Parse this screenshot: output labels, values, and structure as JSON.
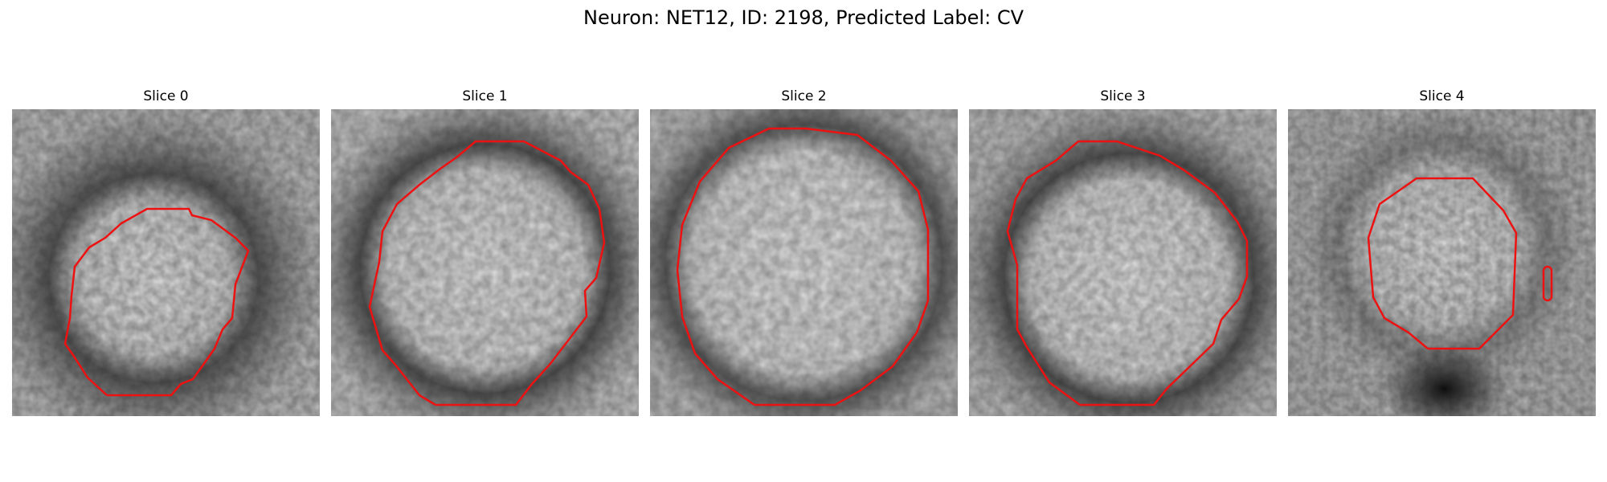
{
  "figure": {
    "title": "Neuron: NET12, ID: 2198, Predicted Label: CV"
  },
  "panels": [
    {
      "title": "Slice 0"
    },
    {
      "title": "Slice 1"
    },
    {
      "title": "Slice 2"
    },
    {
      "title": "Slice 3"
    },
    {
      "title": "Slice 4"
    }
  ],
  "colors": {
    "contour": "#ee1111",
    "background": "#ffffff"
  }
}
